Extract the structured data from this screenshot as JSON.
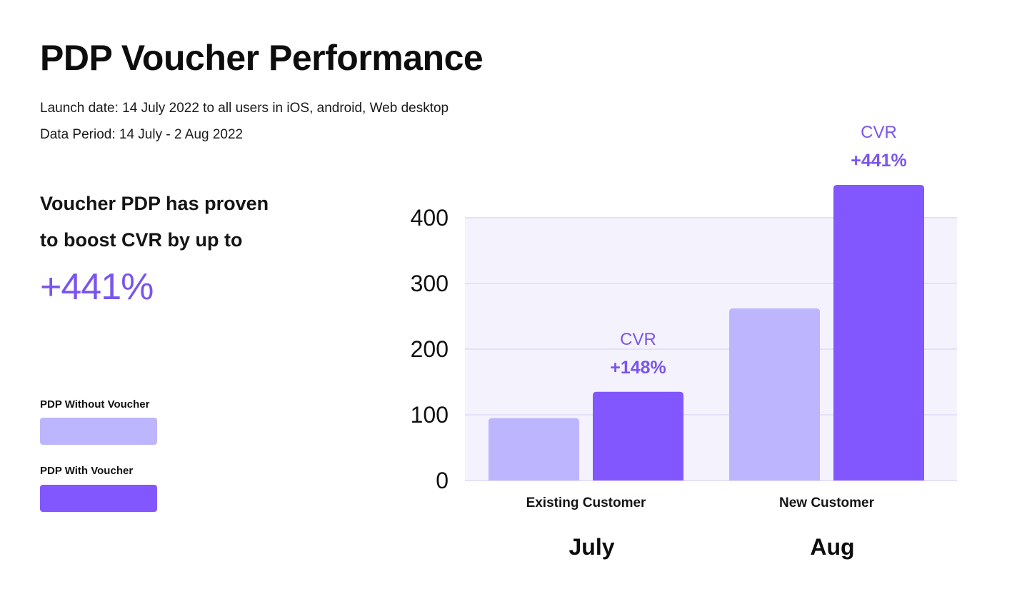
{
  "header": {
    "title": "PDP Voucher Performance",
    "launch": "Launch date: 14 July 2022 to all users in iOS, android, Web desktop",
    "period": "Data Period: 14 July - 2 Aug 2022"
  },
  "highlight": {
    "line1": "Voucher PDP has proven",
    "line2": "to boost CVR by up to",
    "value": "+441%"
  },
  "legend": {
    "items": [
      {
        "label": "PDP Without Voucher",
        "color": "#bdb5fd"
      },
      {
        "label": "PDP With Voucher",
        "color": "#8257fe"
      }
    ]
  },
  "colors": {
    "accent": "#7a55ec",
    "plot_bg": "#f4f3fd",
    "grid": "#e4e1f7"
  },
  "chart_data": {
    "type": "bar",
    "categories": [
      "Existing Customer",
      "New Customer"
    ],
    "groups": [
      "July",
      "Aug"
    ],
    "series": [
      {
        "name": "PDP Without Voucher",
        "values": [
          95,
          262
        ]
      },
      {
        "name": "PDP With Voucher",
        "values": [
          135,
          450
        ]
      }
    ],
    "annotations": [
      {
        "category": "Existing Customer",
        "label": "CVR",
        "value": "+148%"
      },
      {
        "category": "New Customer",
        "label": "CVR",
        "value": "+441%"
      }
    ],
    "yticks": [
      0,
      100,
      200,
      300,
      400
    ],
    "ylim": [
      0,
      400
    ],
    "grid": true,
    "legend_position": "left",
    "xlabel": "",
    "ylabel": ""
  }
}
